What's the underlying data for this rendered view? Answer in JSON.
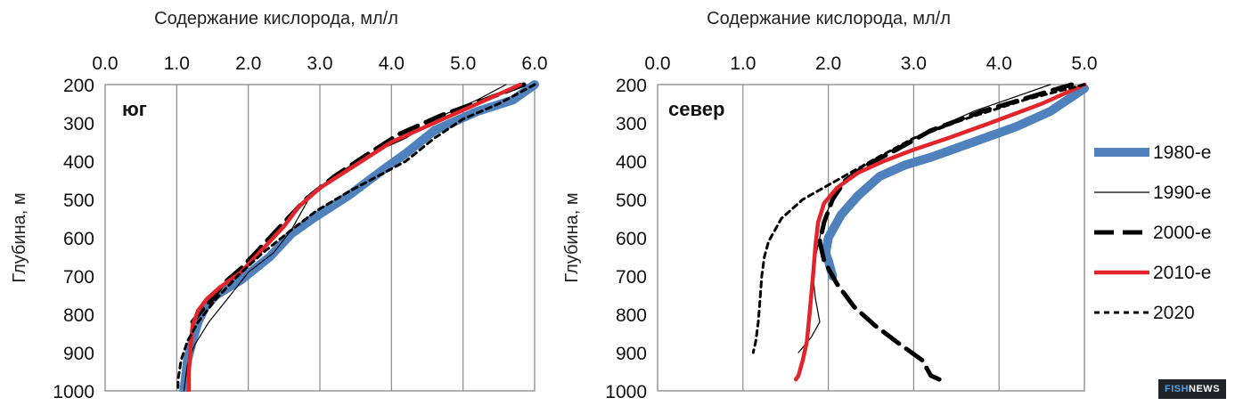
{
  "chart_data": [
    {
      "type": "line",
      "panel_label": "юг",
      "xlabel": "Содержание кислорода, мл/л",
      "ylabel": "Глубина, м",
      "xlim": [
        0,
        6
      ],
      "ylim": [
        200,
        1000
      ],
      "x_axis_position": "top",
      "y_axis_inverted": true,
      "x_ticks": [
        "0.0",
        "1.0",
        "2.0",
        "3.0",
        "4.0",
        "5.0",
        "6.0"
      ],
      "y_ticks": [
        "200",
        "300",
        "400",
        "500",
        "600",
        "700",
        "800",
        "900",
        "1000"
      ],
      "grid": "vertical",
      "series": [
        {
          "name": "1980-е",
          "points": [
            [
              6.0,
              200
            ],
            [
              5.7,
              240
            ],
            [
              5.2,
              270
            ],
            [
              4.6,
              320
            ],
            [
              4.2,
              380
            ],
            [
              3.9,
              420
            ],
            [
              3.4,
              490
            ],
            [
              2.9,
              550
            ],
            [
              2.6,
              590
            ],
            [
              2.3,
              650
            ],
            [
              1.9,
              710
            ],
            [
              1.55,
              750
            ],
            [
              1.4,
              780
            ],
            [
              1.3,
              820
            ],
            [
              1.22,
              870
            ],
            [
              1.15,
              920
            ],
            [
              1.1,
              1000
            ]
          ]
        },
        {
          "name": "1990-е",
          "points": [
            [
              5.6,
              200
            ],
            [
              5.2,
              240
            ],
            [
              4.6,
              290
            ],
            [
              4.2,
              340
            ],
            [
              3.6,
              390
            ],
            [
              3.2,
              440
            ],
            [
              2.9,
              480
            ],
            [
              2.75,
              530
            ],
            [
              2.6,
              580
            ],
            [
              2.35,
              640
            ],
            [
              2.0,
              690
            ],
            [
              1.75,
              750
            ],
            [
              1.45,
              820
            ],
            [
              1.25,
              880
            ],
            [
              1.15,
              930
            ],
            [
              1.1,
              1000
            ]
          ]
        },
        {
          "name": "2000-е",
          "points": [
            [
              5.85,
              200
            ],
            [
              5.3,
              240
            ],
            [
              4.7,
              280
            ],
            [
              4.1,
              330
            ],
            [
              3.6,
              390
            ],
            [
              3.2,
              440
            ],
            [
              2.8,
              500
            ],
            [
              2.45,
              570
            ],
            [
              2.15,
              630
            ],
            [
              1.9,
              680
            ],
            [
              1.65,
              720
            ],
            [
              1.5,
              760
            ],
            [
              1.35,
              790
            ],
            [
              1.22,
              820
            ]
          ]
        },
        {
          "name": "2010-е",
          "points": [
            [
              5.8,
              200
            ],
            [
              5.2,
              250
            ],
            [
              4.6,
              300
            ],
            [
              4.0,
              350
            ],
            [
              3.5,
              410
            ],
            [
              3.0,
              470
            ],
            [
              2.7,
              520
            ],
            [
              2.5,
              570
            ],
            [
              2.2,
              630
            ],
            [
              1.9,
              690
            ],
            [
              1.6,
              730
            ],
            [
              1.42,
              760
            ],
            [
              1.3,
              790
            ],
            [
              1.22,
              830
            ],
            [
              1.2,
              870
            ],
            [
              1.17,
              950
            ],
            [
              1.17,
              1000
            ]
          ]
        },
        {
          "name": "2020",
          "points": [
            [
              6.0,
              200
            ],
            [
              5.5,
              250
            ],
            [
              5.0,
              290
            ],
            [
              4.6,
              340
            ],
            [
              4.2,
              400
            ],
            [
              3.8,
              440
            ],
            [
              3.4,
              480
            ],
            [
              2.95,
              530
            ],
            [
              2.6,
              580
            ],
            [
              2.2,
              640
            ],
            [
              1.85,
              700
            ],
            [
              1.55,
              760
            ],
            [
              1.3,
              820
            ],
            [
              1.15,
              870
            ],
            [
              1.06,
              920
            ],
            [
              1.02,
              970
            ],
            [
              1.02,
              1000
            ]
          ]
        }
      ]
    },
    {
      "type": "line",
      "panel_label": "север",
      "xlabel": "Содержание кислорода, мл/л",
      "ylabel": "Глубина, м",
      "xlim": [
        0,
        5
      ],
      "ylim": [
        200,
        1000
      ],
      "x_axis_position": "top",
      "y_axis_inverted": true,
      "x_ticks": [
        "0.0",
        "1.0",
        "2.0",
        "3.0",
        "4.0",
        "5.0"
      ],
      "y_ticks": [
        "200",
        "300",
        "400",
        "500",
        "600",
        "700",
        "800",
        "900",
        "1000"
      ],
      "grid": "vertical",
      "series": [
        {
          "name": "1980-е",
          "points": [
            [
              5.0,
              210
            ],
            [
              4.6,
              270
            ],
            [
              4.2,
              310
            ],
            [
              3.7,
              350
            ],
            [
              3.2,
              390
            ],
            [
              2.9,
              410
            ],
            [
              2.6,
              440
            ],
            [
              2.35,
              490
            ],
            [
              2.15,
              540
            ],
            [
              2.0,
              600
            ],
            [
              1.97,
              640
            ],
            [
              2.0,
              660
            ],
            [
              2.05,
              700
            ]
          ]
        },
        {
          "name": "1990-е",
          "points": [
            [
              4.6,
              200
            ],
            [
              3.7,
              270
            ],
            [
              3.0,
              340
            ],
            [
              2.5,
              400
            ],
            [
              2.2,
              450
            ],
            [
              2.05,
              500
            ],
            [
              1.95,
              550
            ],
            [
              1.9,
              600
            ],
            [
              1.85,
              650
            ],
            [
              1.82,
              700
            ],
            [
              1.85,
              760
            ],
            [
              1.9,
              820
            ],
            [
              1.8,
              860
            ],
            [
              1.65,
              900
            ]
          ]
        },
        {
          "name": "2000-е",
          "points": [
            [
              4.85,
              200
            ],
            [
              4.4,
              230
            ],
            [
              3.8,
              270
            ],
            [
              3.2,
              320
            ],
            [
              2.8,
              370
            ],
            [
              2.45,
              410
            ],
            [
              2.2,
              450
            ],
            [
              2.05,
              500
            ],
            [
              1.95,
              560
            ],
            [
              1.9,
              610
            ],
            [
              1.95,
              660
            ],
            [
              2.1,
              720
            ],
            [
              2.3,
              780
            ],
            [
              2.55,
              830
            ],
            [
              2.85,
              880
            ],
            [
              3.1,
              920
            ],
            [
              3.2,
              960
            ],
            [
              3.3,
              970
            ]
          ]
        },
        {
          "name": "2010-е",
          "points": [
            [
              5.0,
              200
            ],
            [
              4.5,
              250
            ],
            [
              3.9,
              300
            ],
            [
              3.4,
              340
            ],
            [
              3.0,
              370
            ],
            [
              2.65,
              400
            ],
            [
              2.35,
              430
            ],
            [
              2.1,
              470
            ],
            [
              1.95,
              510
            ],
            [
              1.88,
              560
            ],
            [
              1.85,
              620
            ],
            [
              1.82,
              700
            ],
            [
              1.78,
              800
            ],
            [
              1.75,
              870
            ],
            [
              1.7,
              920
            ],
            [
              1.65,
              960
            ],
            [
              1.62,
              970
            ]
          ]
        },
        {
          "name": "2020",
          "points": [
            [
              5.0,
              200
            ],
            [
              4.3,
              240
            ],
            [
              3.6,
              290
            ],
            [
              3.0,
              340
            ],
            [
              2.5,
              400
            ],
            [
              2.1,
              450
            ],
            [
              1.7,
              500
            ],
            [
              1.45,
              550
            ],
            [
              1.3,
              610
            ],
            [
              1.25,
              650
            ],
            [
              1.22,
              700
            ],
            [
              1.2,
              760
            ],
            [
              1.18,
              820
            ],
            [
              1.15,
              870
            ],
            [
              1.12,
              900
            ]
          ]
        }
      ]
    }
  ],
  "legend": [
    {
      "label": "1980-е",
      "color": "#4f81bd",
      "width": 10,
      "dash": ""
    },
    {
      "label": "1990-е",
      "color": "#000000",
      "width": 1.2,
      "dash": ""
    },
    {
      "label": "2000-е",
      "color": "#000000",
      "width": 5,
      "dash": "22,10"
    },
    {
      "label": "2010-е",
      "color": "#e2252b",
      "width": 4.5,
      "dash": ""
    },
    {
      "label": "2020",
      "color": "#000000",
      "width": 3,
      "dash": "6,5"
    }
  ],
  "watermark": {
    "part1": "FISH",
    "part2": "NEWS"
  }
}
